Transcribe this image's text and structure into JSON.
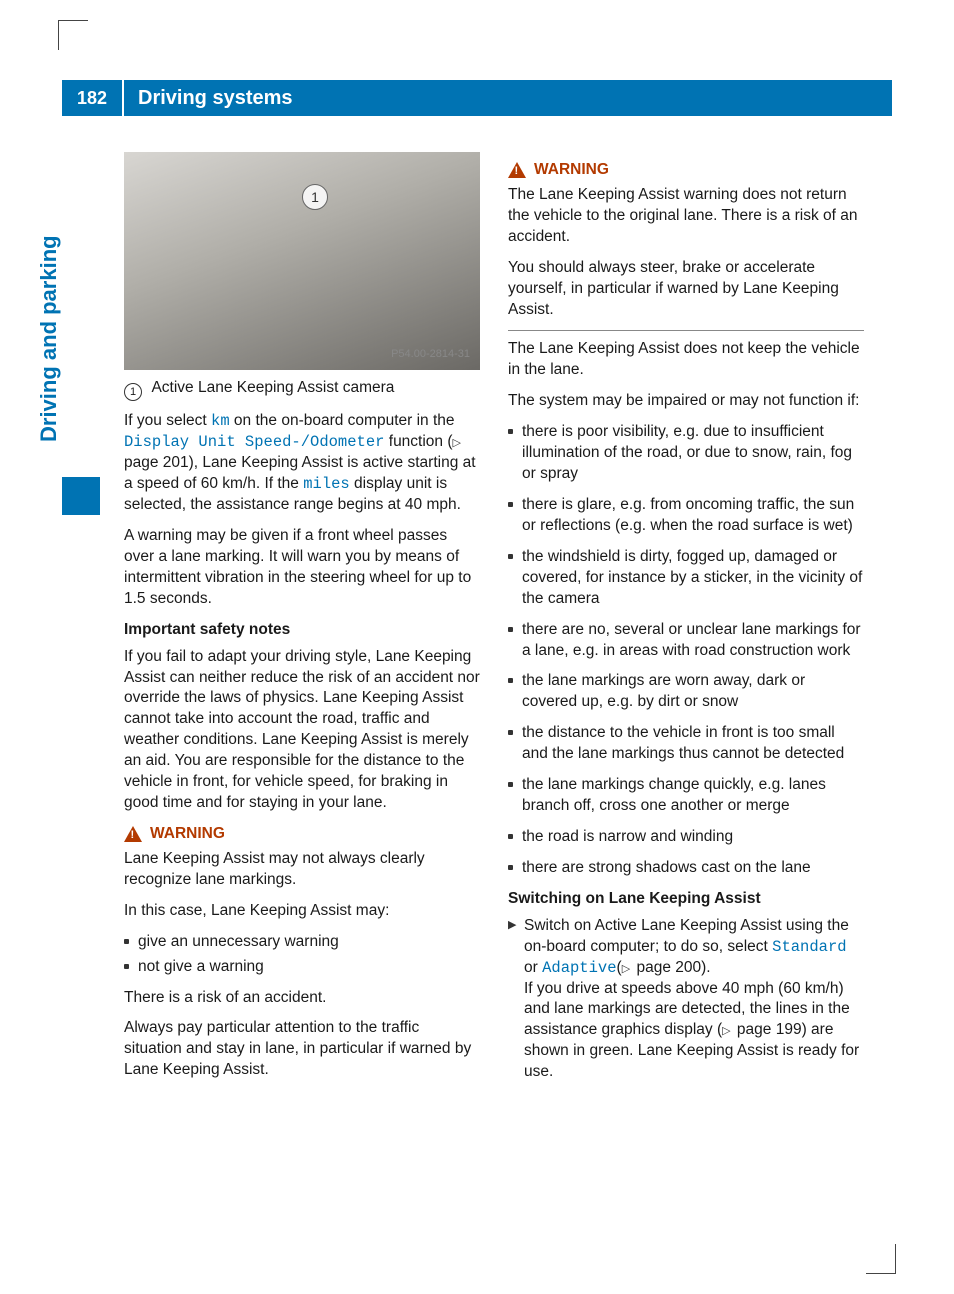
{
  "page": {
    "number": "182",
    "title": "Driving systems",
    "side_tab": "Driving and parking"
  },
  "colors": {
    "accent": "#0073b3",
    "warn": "#b33a00",
    "text": "#1a1a1a",
    "mono": "#0073b3"
  },
  "image": {
    "watermark": "P54.00-2814-31",
    "callout_num": "1",
    "caption_label": "Active Lane Keeping Assist camera"
  },
  "left": {
    "p1a": "If you select ",
    "p1_mono1": "km",
    "p1b": " on the on-board computer in the ",
    "p1_mono2": "Display Unit Speed-/Odometer",
    "p1c": " function (",
    "p1_ref": " page 201), Lane Keeping Assist is active starting at a speed of 60 km/h. If the ",
    "p1_mono3": "miles",
    "p1d": " display unit is selected, the assistance range begins at 40 mph.",
    "p2": "A warning may be given if a front wheel passes over a lane marking. It will warn you by means of intermittent vibration in the steering wheel for up to 1.5 seconds.",
    "h1": "Important safety notes",
    "p3": "If you fail to adapt your driving style, Lane Keeping Assist can neither reduce the risk of an accident nor override the laws of physics. Lane Keeping Assist cannot take into account the road, traffic and weather conditions. Lane Keeping Assist is merely an aid. You are responsible for the distance to the vehicle in front, for vehicle speed, for braking in good time and for staying in your lane.",
    "warn1_title": "WARNING",
    "warn1_p1": "Lane Keeping Assist may not always clearly recognize lane markings.",
    "warn1_p2": "In this case, Lane Keeping Assist may:",
    "warn1_li1": "give an unnecessary warning",
    "warn1_li2": "not give a warning",
    "warn1_p3": "There is a risk of an accident.",
    "warn1_p4": "Always pay particular attention to the traffic situation and stay in lane, in particular if warned by Lane Keeping Assist."
  },
  "right": {
    "warn2_title": "WARNING",
    "warn2_p1": "The Lane Keeping Assist warning does not return the vehicle to the original lane. There is a risk of an accident.",
    "warn2_p2": "You should always steer, brake or accelerate yourself, in particular if warned by Lane Keeping Assist.",
    "p1": "The Lane Keeping Assist does not keep the vehicle in the lane.",
    "p2": "The system may be impaired or may not function if:",
    "li1": "there is poor visibility, e.g. due to insufficient illumination of the road, or due to snow, rain, fog or spray",
    "li2": "there is glare, e.g. from oncoming traffic, the sun or reflections (e.g. when the road surface is wet)",
    "li3": "the windshield is dirty, fogged up, damaged or covered, for instance by a sticker, in the vicinity of the camera",
    "li4": "there are no, several or unclear lane markings for a lane, e.g. in areas with road construction work",
    "li5": "the lane markings are worn away, dark or covered up, e.g. by dirt or snow",
    "li6": "the distance to the vehicle in front is too small and the lane markings thus cannot be detected",
    "li7": "the lane markings change quickly, e.g. lanes branch off, cross one another or merge",
    "li8": "the road is narrow and winding",
    "li9": "there are strong shadows cast on the lane",
    "h1": "Switching on Lane Keeping Assist",
    "action_a": "Switch on Active Lane Keeping Assist using the on-board computer; to do so, select ",
    "action_mono1": "Standard",
    "action_b": " or ",
    "action_mono2": "Adaptive",
    "action_c": "(",
    "action_ref1": " page 200).",
    "action_d": "If you drive at speeds above 40 mph (60 km/h) and lane markings are detected, the lines in the assistance graphics display (",
    "action_ref2": " page 199) are shown in green. Lane Keeping Assist is ready for use."
  }
}
